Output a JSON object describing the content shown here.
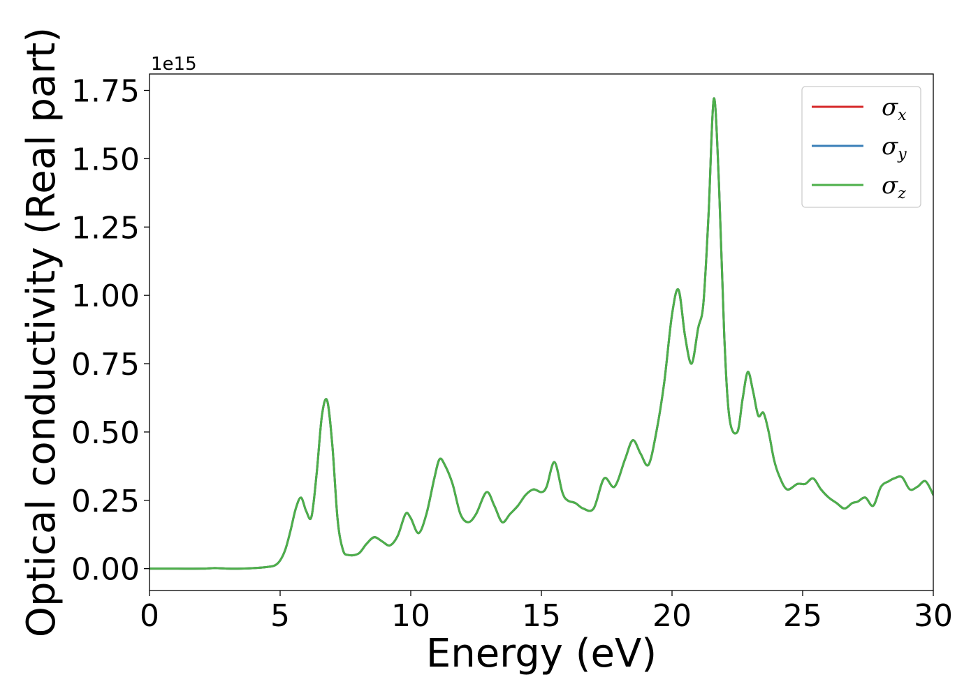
{
  "chart_data": {
    "type": "line",
    "xlabel": "Energy (eV)",
    "ylabel": "Optical conductivity (Real part)",
    "y_offset_label": "1e15",
    "xlim": [
      0,
      30
    ],
    "ylim": [
      -0.08,
      1.81
    ],
    "y_scale": 1000000000000000.0,
    "x_ticks": [
      0,
      5,
      10,
      15,
      20,
      25,
      30
    ],
    "x_tick_labels": [
      "0",
      "5",
      "10",
      "15",
      "20",
      "25",
      "30"
    ],
    "y_ticks": [
      0.0,
      0.25,
      0.5,
      0.75,
      1.0,
      1.25,
      1.5,
      1.75
    ],
    "y_tick_labels": [
      "0.00",
      "0.25",
      "0.50",
      "0.75",
      "1.00",
      "1.25",
      "1.50",
      "1.75"
    ],
    "grid": false,
    "legend_position": "top-right",
    "legend": [
      {
        "symbol": "σ",
        "subscript": "x",
        "color": "#d62728"
      },
      {
        "symbol": "σ",
        "subscript": "y",
        "color": "#3a7fb8"
      },
      {
        "symbol": "σ",
        "subscript": "z",
        "color": "#4daf4a"
      }
    ],
    "x": [
      0,
      1,
      2,
      2.5,
      3,
      3.5,
      4,
      4.5,
      4.8,
      5,
      5.2,
      5.4,
      5.6,
      5.8,
      6.0,
      6.2,
      6.4,
      6.6,
      6.8,
      7.0,
      7.2,
      7.4,
      7.6,
      8.0,
      8.3,
      8.6,
      8.9,
      9.2,
      9.5,
      9.8,
      10.0,
      10.3,
      10.6,
      10.9,
      11.1,
      11.3,
      11.6,
      11.9,
      12.2,
      12.5,
      12.9,
      13.2,
      13.5,
      13.8,
      14.1,
      14.4,
      14.7,
      15.0,
      15.2,
      15.5,
      15.8,
      16.0,
      16.3,
      16.6,
      17.0,
      17.4,
      17.8,
      18.2,
      18.5,
      18.8,
      19.1,
      19.4,
      19.7,
      20.0,
      20.25,
      20.5,
      20.75,
      21.0,
      21.2,
      21.4,
      21.6,
      21.8,
      22.0,
      22.2,
      22.5,
      22.7,
      22.9,
      23.1,
      23.3,
      23.5,
      23.7,
      23.9,
      24.1,
      24.4,
      24.8,
      25.1,
      25.4,
      25.7,
      26.0,
      26.3,
      26.6,
      26.9,
      27.1,
      27.4,
      27.7,
      28.0,
      28.3,
      28.5,
      28.8,
      29.1,
      29.4,
      29.7,
      30.0
    ],
    "series": [
      {
        "values": [
          0,
          0,
          0,
          0.002,
          0,
          0,
          0.002,
          0.006,
          0.012,
          0.03,
          0.07,
          0.14,
          0.22,
          0.26,
          0.21,
          0.19,
          0.35,
          0.56,
          0.615,
          0.45,
          0.18,
          0.07,
          0.05,
          0.055,
          0.09,
          0.115,
          0.1,
          0.085,
          0.12,
          0.2,
          0.185,
          0.13,
          0.2,
          0.33,
          0.4,
          0.38,
          0.31,
          0.2,
          0.17,
          0.2,
          0.28,
          0.23,
          0.17,
          0.2,
          0.23,
          0.27,
          0.29,
          0.28,
          0.3,
          0.39,
          0.28,
          0.25,
          0.24,
          0.22,
          0.22,
          0.33,
          0.3,
          0.4,
          0.47,
          0.42,
          0.38,
          0.5,
          0.68,
          0.93,
          1.02,
          0.85,
          0.75,
          0.88,
          0.97,
          1.3,
          1.72,
          1.4,
          0.85,
          0.55,
          0.5,
          0.62,
          0.72,
          0.65,
          0.56,
          0.57,
          0.5,
          0.4,
          0.34,
          0.29,
          0.31,
          0.31,
          0.33,
          0.29,
          0.26,
          0.24,
          0.22,
          0.24,
          0.245,
          0.26,
          0.23,
          0.3,
          0.32,
          0.33,
          0.335,
          0.29,
          0.3,
          0.32,
          0.27
        ]
      },
      {
        "values": [
          0,
          0,
          0,
          0.002,
          0,
          0,
          0.002,
          0.006,
          0.012,
          0.03,
          0.07,
          0.14,
          0.22,
          0.26,
          0.21,
          0.19,
          0.35,
          0.56,
          0.615,
          0.45,
          0.18,
          0.07,
          0.05,
          0.055,
          0.09,
          0.115,
          0.1,
          0.085,
          0.12,
          0.2,
          0.185,
          0.13,
          0.2,
          0.33,
          0.4,
          0.38,
          0.31,
          0.2,
          0.17,
          0.2,
          0.28,
          0.23,
          0.17,
          0.2,
          0.23,
          0.27,
          0.29,
          0.28,
          0.3,
          0.39,
          0.28,
          0.25,
          0.24,
          0.22,
          0.22,
          0.33,
          0.3,
          0.4,
          0.47,
          0.42,
          0.38,
          0.5,
          0.68,
          0.93,
          1.02,
          0.85,
          0.75,
          0.88,
          0.97,
          1.3,
          1.72,
          1.4,
          0.85,
          0.55,
          0.5,
          0.62,
          0.72,
          0.65,
          0.56,
          0.57,
          0.5,
          0.4,
          0.34,
          0.29,
          0.31,
          0.31,
          0.33,
          0.29,
          0.26,
          0.24,
          0.22,
          0.24,
          0.245,
          0.26,
          0.23,
          0.3,
          0.32,
          0.33,
          0.335,
          0.29,
          0.3,
          0.32,
          0.27
        ]
      },
      {
        "values": [
          0,
          0,
          0,
          0.002,
          0,
          0,
          0.002,
          0.006,
          0.012,
          0.03,
          0.07,
          0.14,
          0.22,
          0.26,
          0.21,
          0.19,
          0.35,
          0.56,
          0.615,
          0.45,
          0.18,
          0.07,
          0.05,
          0.055,
          0.09,
          0.115,
          0.1,
          0.085,
          0.12,
          0.2,
          0.185,
          0.13,
          0.2,
          0.33,
          0.4,
          0.38,
          0.31,
          0.2,
          0.17,
          0.2,
          0.28,
          0.23,
          0.17,
          0.2,
          0.23,
          0.27,
          0.29,
          0.28,
          0.3,
          0.39,
          0.28,
          0.25,
          0.24,
          0.22,
          0.22,
          0.33,
          0.3,
          0.4,
          0.47,
          0.42,
          0.38,
          0.5,
          0.68,
          0.93,
          1.02,
          0.85,
          0.75,
          0.88,
          0.97,
          1.3,
          1.72,
          1.4,
          0.85,
          0.55,
          0.5,
          0.62,
          0.72,
          0.65,
          0.56,
          0.57,
          0.5,
          0.4,
          0.34,
          0.29,
          0.31,
          0.31,
          0.33,
          0.29,
          0.26,
          0.24,
          0.22,
          0.24,
          0.245,
          0.26,
          0.23,
          0.3,
          0.32,
          0.33,
          0.335,
          0.29,
          0.3,
          0.32,
          0.27
        ]
      }
    ]
  }
}
